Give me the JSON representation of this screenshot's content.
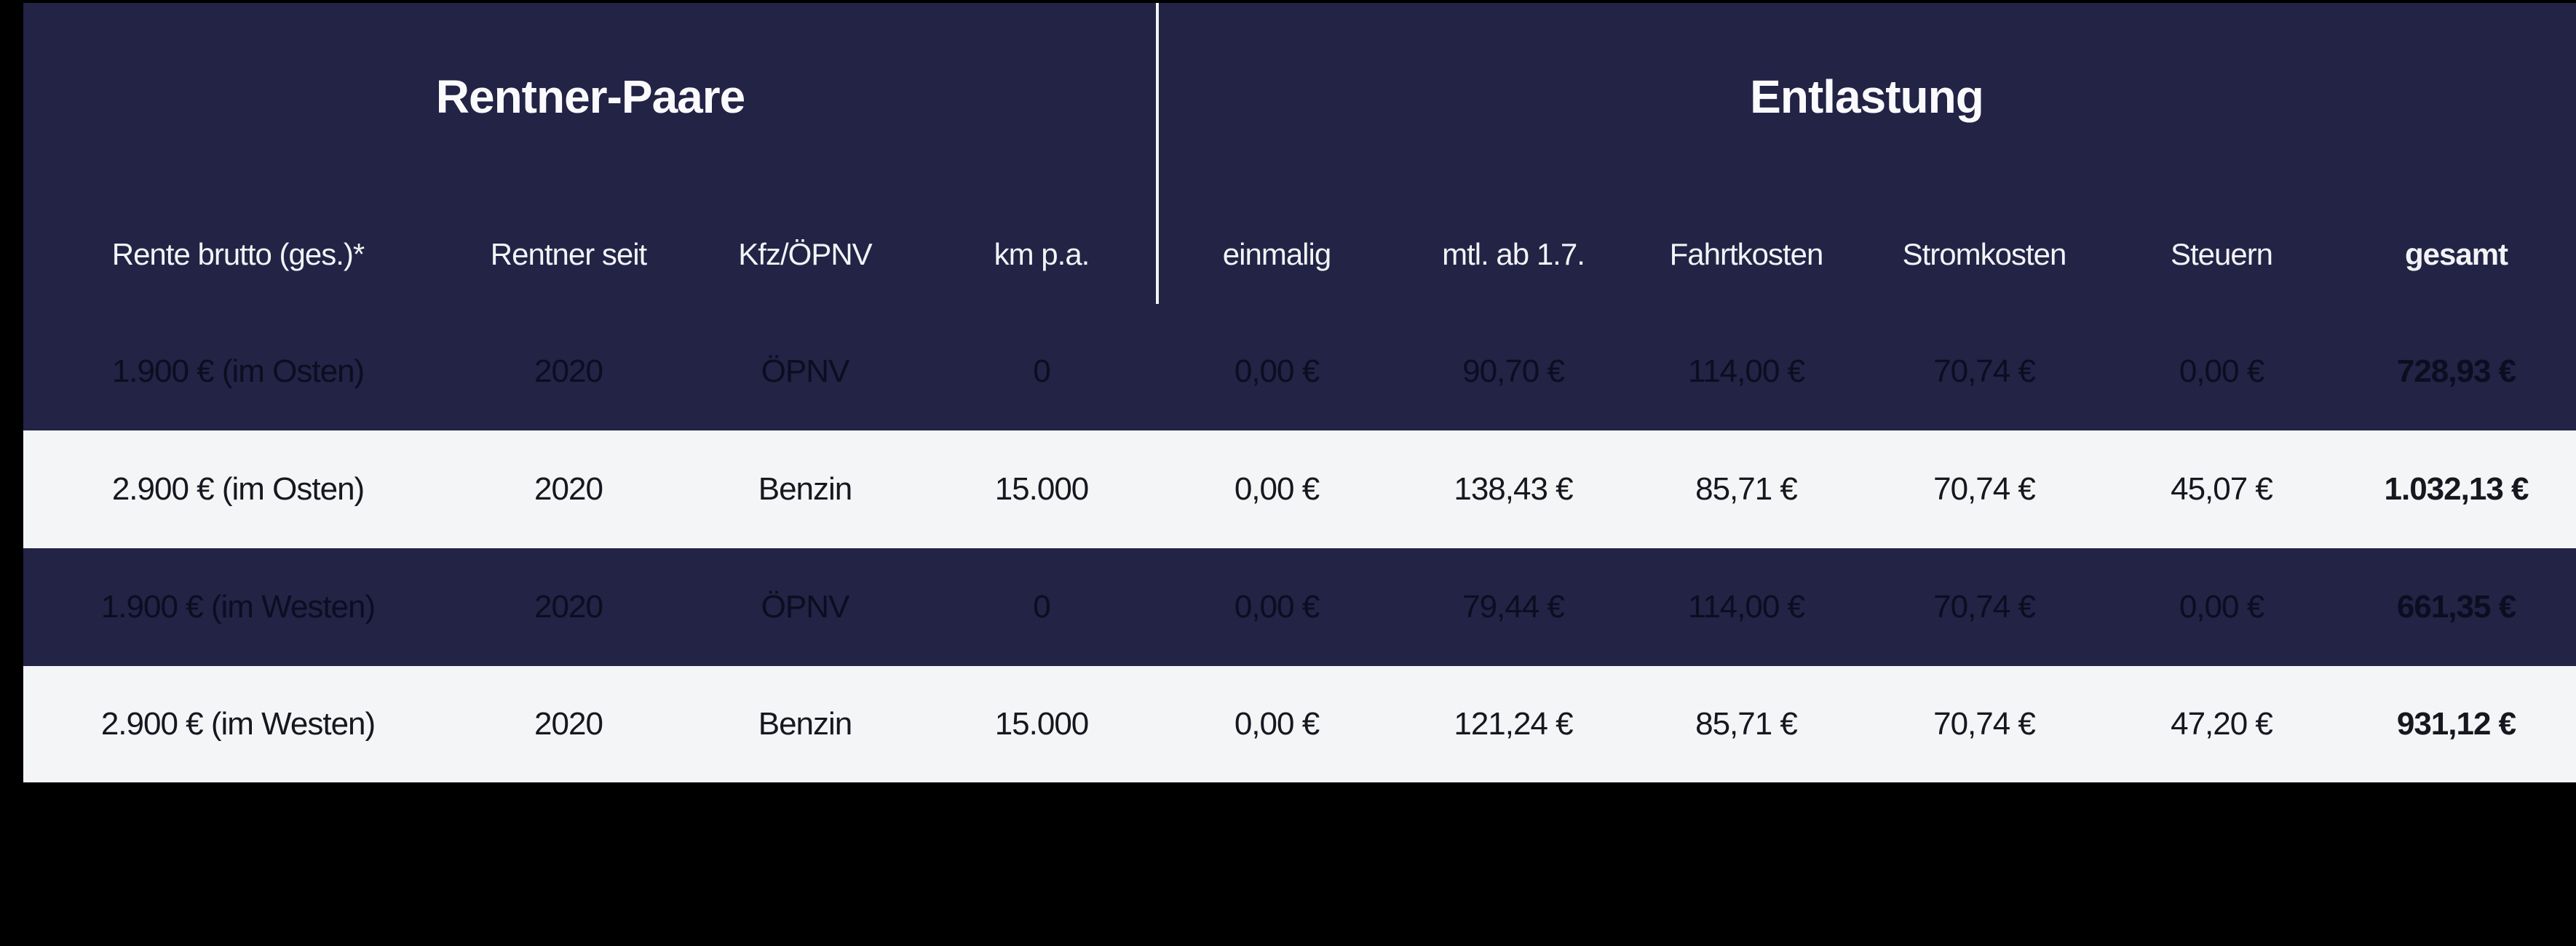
{
  "chart_data": {
    "type": "table",
    "groups": [
      {
        "label": "Rentner-Paare",
        "col_start": 0,
        "col_end": 3
      },
      {
        "label": "Entlastung",
        "col_start": 4,
        "col_end": 9
      }
    ],
    "columns": [
      "Rente brutto (ges.)*",
      "Rentner seit",
      "Kfz/ÖPNV",
      "km p.a.",
      "einmalig",
      "mtl. ab 1.7.",
      "Fahrtkosten",
      "Stromkosten",
      "Steuern",
      "gesamt"
    ],
    "rows": [
      [
        "1.900 € (im Osten)",
        "2020",
        "ÖPNV",
        "0",
        "0,00 €",
        "90,70 €",
        "114,00 €",
        "70,74 €",
        "0,00 €",
        "728,93 €"
      ],
      [
        "2.900 € (im Osten)",
        "2020",
        "Benzin",
        "15.000",
        "0,00 €",
        "138,43 €",
        "85,71 €",
        "70,74 €",
        "45,07 €",
        "1.032,13 €"
      ],
      [
        "1.900 € (im Westen)",
        "2020",
        "ÖPNV",
        "0",
        "0,00 €",
        "79,44 €",
        "114,00 €",
        "70,74 €",
        "0,00 €",
        "661,35 €"
      ],
      [
        "2.900 € (im Westen)",
        "2020",
        "Benzin",
        "15.000",
        "0,00 €",
        "121,24 €",
        "85,71 €",
        "70,74 €",
        "47,20 €",
        "931,12 €"
      ]
    ],
    "layout_hints": {
      "group_divider_after_column": 3,
      "row_striping": [
        "dark",
        "light",
        "dark",
        "light"
      ]
    },
    "colors": {
      "background": "#000000",
      "navy": "#222345",
      "light_row": "#f4f5f7",
      "header_text": "#f2f3f6",
      "divider": "#f2f3f5"
    }
  }
}
